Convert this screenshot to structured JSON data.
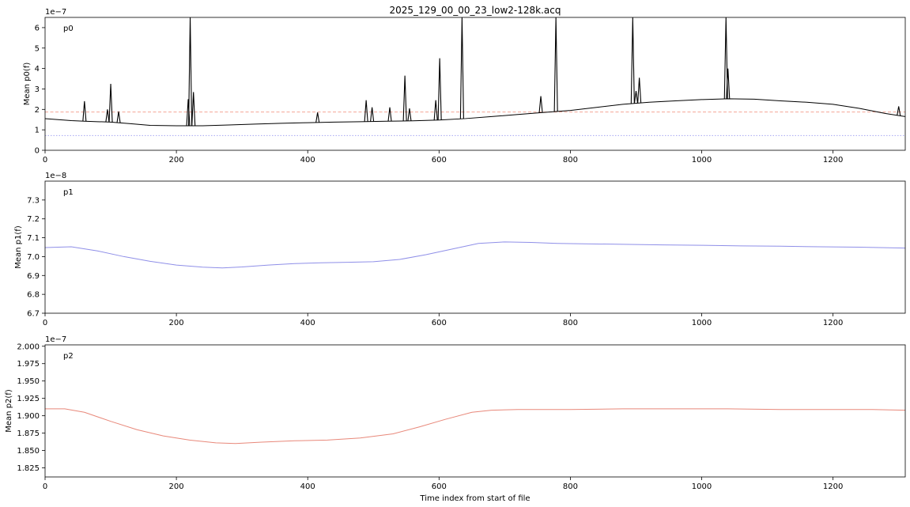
{
  "title": "2025_129_00_00_23_low2-128k.acq",
  "xlabel": "Time index from start of file",
  "chart_data": [
    {
      "type": "line",
      "panel_label": "p0",
      "ylabel": "Mean p0(f)",
      "offset_text": "1e−7",
      "xlim": [
        0,
        1310
      ],
      "ylim": [
        0,
        6.5
      ],
      "xticks": [
        0,
        200,
        400,
        600,
        800,
        1000,
        1200
      ],
      "yticks": [
        0,
        1,
        2,
        3,
        4,
        5,
        6
      ],
      "hlines": [
        {
          "y": 1.87,
          "color": "#f4a596",
          "style": "dashed"
        },
        {
          "y": 0.72,
          "color": "#a6a6f2",
          "style": "dotted"
        }
      ],
      "series": [
        {
          "color": "#000000",
          "x": [
            0,
            20,
            40,
            60,
            80,
            100,
            130,
            160,
            200,
            240,
            280,
            320,
            360,
            400,
            440,
            480,
            520,
            560,
            600,
            640,
            680,
            720,
            760,
            800,
            840,
            880,
            920,
            960,
            1000,
            1040,
            1080,
            1120,
            1160,
            1200,
            1240,
            1280,
            1310
          ],
          "y": [
            1.55,
            1.5,
            1.45,
            1.42,
            1.4,
            1.38,
            1.3,
            1.22,
            1.2,
            1.2,
            1.24,
            1.28,
            1.32,
            1.35,
            1.38,
            1.4,
            1.42,
            1.44,
            1.48,
            1.55,
            1.65,
            1.75,
            1.85,
            1.95,
            2.1,
            2.25,
            2.35,
            2.42,
            2.48,
            2.52,
            2.5,
            2.42,
            2.35,
            2.25,
            2.05,
            1.8,
            1.65
          ]
        },
        {
          "color": "#000000",
          "type": "spikes",
          "x": [
            60,
            95,
            100,
            112,
            218,
            221,
            226,
            415,
            489,
            498,
            525,
            548,
            555,
            595,
            601,
            635,
            755,
            778,
            895,
            900,
            905,
            1037,
            1040,
            1300
          ],
          "y": [
            2.4,
            2.0,
            3.25,
            1.9,
            2.5,
            6.5,
            2.85,
            1.85,
            2.45,
            2.1,
            2.1,
            3.65,
            2.05,
            2.45,
            4.5,
            6.5,
            2.65,
            6.5,
            6.5,
            2.9,
            3.55,
            6.5,
            4.0,
            2.15
          ]
        }
      ]
    },
    {
      "type": "line",
      "panel_label": "p1",
      "ylabel": "Mean p1(f)",
      "offset_text": "1e−8",
      "xlim": [
        0,
        1310
      ],
      "ylim": [
        6.7,
        7.4
      ],
      "xticks": [
        0,
        200,
        400,
        600,
        800,
        1000,
        1200
      ],
      "yticks": [
        6.7,
        6.8,
        6.9,
        7.0,
        7.1,
        7.2,
        7.3
      ],
      "series": [
        {
          "color": "#8f8fe8",
          "x": [
            0,
            40,
            80,
            120,
            160,
            200,
            240,
            270,
            300,
            340,
            380,
            420,
            460,
            500,
            540,
            580,
            620,
            660,
            700,
            740,
            780,
            820,
            880,
            940,
            1000,
            1060,
            1120,
            1180,
            1240,
            1310
          ],
          "y": [
            7.048,
            7.052,
            7.03,
            7.0,
            6.975,
            6.955,
            6.944,
            6.94,
            6.945,
            6.955,
            6.963,
            6.967,
            6.97,
            6.973,
            6.985,
            7.01,
            7.04,
            7.07,
            7.078,
            7.075,
            7.07,
            7.068,
            7.065,
            7.062,
            7.06,
            7.057,
            7.055,
            7.052,
            7.05,
            7.045
          ]
        }
      ]
    },
    {
      "type": "line",
      "panel_label": "p2",
      "ylabel": "Mean p2(f)",
      "offset_text": "1e−7",
      "xlim": [
        0,
        1310
      ],
      "ylim": [
        1.812,
        2.002
      ],
      "xticks": [
        0,
        200,
        400,
        600,
        800,
        1000,
        1200
      ],
      "yticks": [
        1.825,
        1.85,
        1.875,
        1.9,
        1.925,
        1.95,
        1.975,
        2.0
      ],
      "series": [
        {
          "color": "#e8887a",
          "x": [
            0,
            30,
            60,
            100,
            140,
            180,
            220,
            260,
            290,
            330,
            380,
            430,
            480,
            530,
            570,
            610,
            650,
            680,
            720,
            760,
            800,
            880,
            960,
            1040,
            1120,
            1200,
            1260,
            1310
          ],
          "y": [
            1.91,
            1.91,
            1.905,
            1.892,
            1.88,
            1.871,
            1.865,
            1.861,
            1.86,
            1.862,
            1.864,
            1.865,
            1.868,
            1.874,
            1.884,
            1.895,
            1.905,
            1.908,
            1.909,
            1.909,
            1.909,
            1.91,
            1.91,
            1.91,
            1.909,
            1.909,
            1.909,
            1.908
          ]
        }
      ]
    }
  ]
}
